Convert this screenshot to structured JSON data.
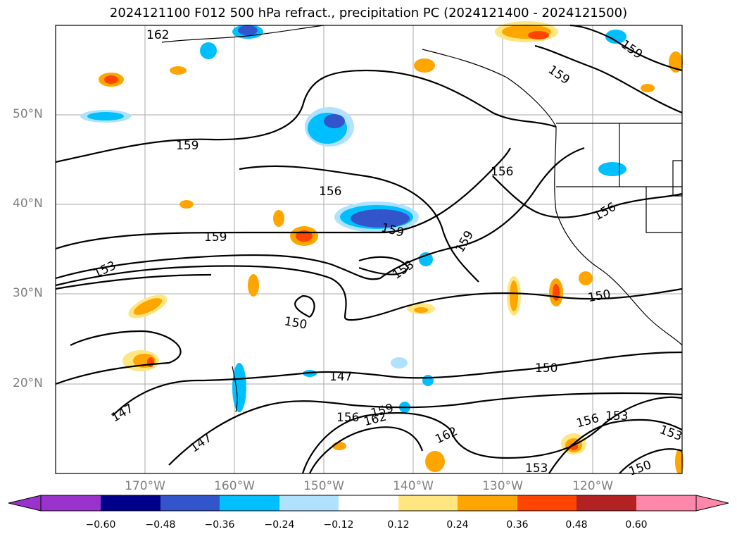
{
  "title": "2024121100 F012 500 hPa refract., precipitation PC (2024121400 - 2024121500)",
  "lat_labels": [
    "50°N",
    "40°N",
    "30°N",
    "20°N"
  ],
  "lon_labels": [
    "170°W",
    "160°W",
    "150°W",
    "140°W",
    "130°W",
    "120°W"
  ],
  "contour_labels": [
    "162",
    "159",
    "159",
    "159",
    "156",
    "156",
    "156",
    "159",
    "159",
    "159",
    "153",
    "153",
    "150",
    "150",
    "150",
    "147",
    "147",
    "147",
    "156",
    "159",
    "162",
    "162",
    "156",
    "153",
    "153",
    "153",
    "150"
  ],
  "colorbar": {
    "ticks": [
      "−0.60",
      "−0.48",
      "−0.36",
      "−0.24",
      "−0.12",
      "0.12",
      "0.24",
      "0.36",
      "0.48",
      "0.60"
    ],
    "colors": [
      "#9933cc",
      "#00008b",
      "#3355cc",
      "#00bfff",
      "#b0e2ff",
      "#ffffff",
      "#ffe680",
      "#ffa500",
      "#ff4500",
      "#b22222",
      "#ff88aa"
    ]
  },
  "colors": {
    "grid": "#aaaaaa",
    "contour": "#000000",
    "coast": "#000000"
  }
}
